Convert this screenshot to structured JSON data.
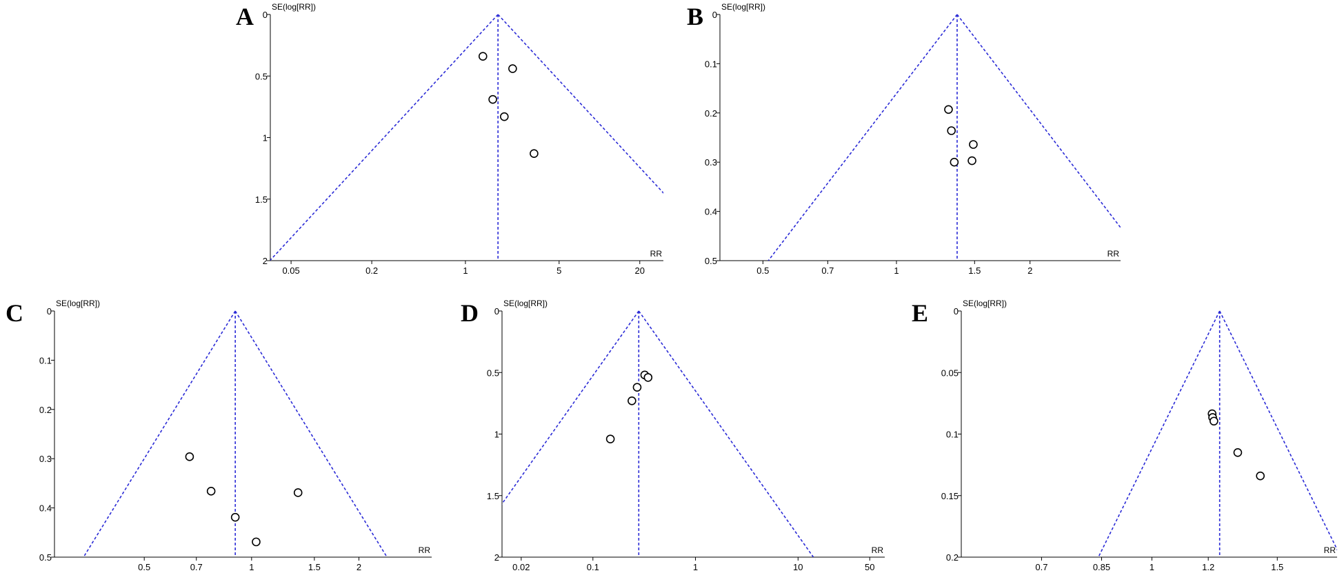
{
  "chart_data": [
    {
      "type": "scatter",
      "panel": "A",
      "ylabel": "SE(log[RR])",
      "xlabel": "RR",
      "x_scale": "log",
      "y_reversed": true,
      "xlim": [
        0.035,
        30
      ],
      "ylim": [
        0,
        2
      ],
      "xticks": [
        {
          "value": 0.05,
          "label": "0.05"
        },
        {
          "value": 0.2,
          "label": "0.2"
        },
        {
          "value": 1,
          "label": "1"
        },
        {
          "value": 5,
          "label": "5"
        },
        {
          "value": 20,
          "label": "20"
        }
      ],
      "yticks": [
        {
          "value": 0,
          "label": "0"
        },
        {
          "value": 0.5,
          "label": "0.5"
        },
        {
          "value": 1,
          "label": "1"
        },
        {
          "value": 1.5,
          "label": "1.5"
        },
        {
          "value": 2,
          "label": "2"
        }
      ],
      "pooled_rr": 1.75,
      "points": [
        {
          "x": 1.35,
          "y": 0.34
        },
        {
          "x": 2.25,
          "y": 0.44
        },
        {
          "x": 1.6,
          "y": 0.69
        },
        {
          "x": 1.95,
          "y": 0.83
        },
        {
          "x": 3.25,
          "y": 1.13
        }
      ]
    },
    {
      "type": "scatter",
      "panel": "B",
      "ylabel": "SE(log[RR])",
      "xlabel": "RR",
      "x_scale": "log",
      "y_reversed": true,
      "xlim": [
        0.4,
        3.2
      ],
      "ylim": [
        0,
        0.5
      ],
      "xticks": [
        {
          "value": 0.5,
          "label": "0.5"
        },
        {
          "value": 0.7,
          "label": "0.7"
        },
        {
          "value": 1,
          "label": "1"
        },
        {
          "value": 1.5,
          "label": "1.5"
        },
        {
          "value": 2,
          "label": "2"
        }
      ],
      "yticks": [
        {
          "value": 0,
          "label": "0"
        },
        {
          "value": 0.1,
          "label": "0.1"
        },
        {
          "value": 0.2,
          "label": "0.2"
        },
        {
          "value": 0.3,
          "label": "0.3"
        },
        {
          "value": 0.4,
          "label": "0.4"
        },
        {
          "value": 0.5,
          "label": "0.5"
        }
      ],
      "pooled_rr": 1.37,
      "points": [
        {
          "x": 1.31,
          "y": 0.193
        },
        {
          "x": 1.33,
          "y": 0.236
        },
        {
          "x": 1.49,
          "y": 0.264
        },
        {
          "x": 1.48,
          "y": 0.297
        },
        {
          "x": 1.35,
          "y": 0.3
        }
      ]
    },
    {
      "type": "scatter",
      "panel": "C",
      "ylabel": "SE(log[RR])",
      "xlabel": "RR",
      "x_scale": "log",
      "y_reversed": true,
      "xlim": [
        0.28,
        3.2
      ],
      "ylim": [
        0,
        0.5
      ],
      "xticks": [
        {
          "value": 0.5,
          "label": "0.5"
        },
        {
          "value": 0.7,
          "label": "0.7"
        },
        {
          "value": 1,
          "label": "1"
        },
        {
          "value": 1.5,
          "label": "1.5"
        },
        {
          "value": 2,
          "label": "2"
        }
      ],
      "yticks": [
        {
          "value": 0,
          "label": "0"
        },
        {
          "value": 0.1,
          "label": "0.1"
        },
        {
          "value": 0.2,
          "label": "0.2"
        },
        {
          "value": 0.3,
          "label": "0.3"
        },
        {
          "value": 0.4,
          "label": "0.4"
        },
        {
          "value": 0.5,
          "label": "0.5"
        }
      ],
      "pooled_rr": 0.9,
      "points": [
        {
          "x": 0.67,
          "y": 0.296
        },
        {
          "x": 0.77,
          "y": 0.366
        },
        {
          "x": 1.35,
          "y": 0.369
        },
        {
          "x": 0.9,
          "y": 0.419
        },
        {
          "x": 1.03,
          "y": 0.469
        }
      ]
    },
    {
      "type": "scatter",
      "panel": "D",
      "ylabel": "SE(log[RR])",
      "xlabel": "RR",
      "x_scale": "log",
      "y_reversed": true,
      "xlim": [
        0.013,
        70
      ],
      "ylim": [
        0,
        2
      ],
      "xticks": [
        {
          "value": 0.02,
          "label": "0.02"
        },
        {
          "value": 0.1,
          "label": "0.1"
        },
        {
          "value": 1,
          "label": "1"
        },
        {
          "value": 10,
          "label": "10"
        },
        {
          "value": 50,
          "label": "50"
        }
      ],
      "yticks": [
        {
          "value": 0,
          "label": "0"
        },
        {
          "value": 0.5,
          "label": "0.5"
        },
        {
          "value": 1,
          "label": "1"
        },
        {
          "value": 1.5,
          "label": "1.5"
        },
        {
          "value": 2,
          "label": "2"
        }
      ],
      "pooled_rr": 0.28,
      "points": [
        {
          "x": 0.32,
          "y": 0.52
        },
        {
          "x": 0.345,
          "y": 0.54
        },
        {
          "x": 0.27,
          "y": 0.62
        },
        {
          "x": 0.24,
          "y": 0.73
        },
        {
          "x": 0.148,
          "y": 1.04
        }
      ]
    },
    {
      "type": "scatter",
      "panel": "E",
      "ylabel": "SE(log[RR])",
      "xlabel": "RR",
      "x_scale": "log",
      "y_reversed": true,
      "xlim": [
        0.54,
        1.82
      ],
      "ylim": [
        0,
        0.2
      ],
      "xticks": [
        {
          "value": 0.7,
          "label": "0.7"
        },
        {
          "value": 0.85,
          "label": "0.85"
        },
        {
          "value": 1,
          "label": "1"
        },
        {
          "value": 1.2,
          "label": "1.2"
        },
        {
          "value": 1.5,
          "label": "1.5"
        }
      ],
      "yticks": [
        {
          "value": 0,
          "label": "0"
        },
        {
          "value": 0.05,
          "label": "0.05"
        },
        {
          "value": 0.1,
          "label": "0.1"
        },
        {
          "value": 0.15,
          "label": "0.15"
        },
        {
          "value": 0.2,
          "label": "0.2"
        }
      ],
      "pooled_rr": 1.245,
      "points": [
        {
          "x": 1.215,
          "y": 0.0835
        },
        {
          "x": 1.217,
          "y": 0.0865
        },
        {
          "x": 1.222,
          "y": 0.0895
        },
        {
          "x": 1.32,
          "y": 0.115
        },
        {
          "x": 1.42,
          "y": 0.134
        }
      ]
    }
  ],
  "funnel_color": "#2a2ad6",
  "point_color": "#000000"
}
